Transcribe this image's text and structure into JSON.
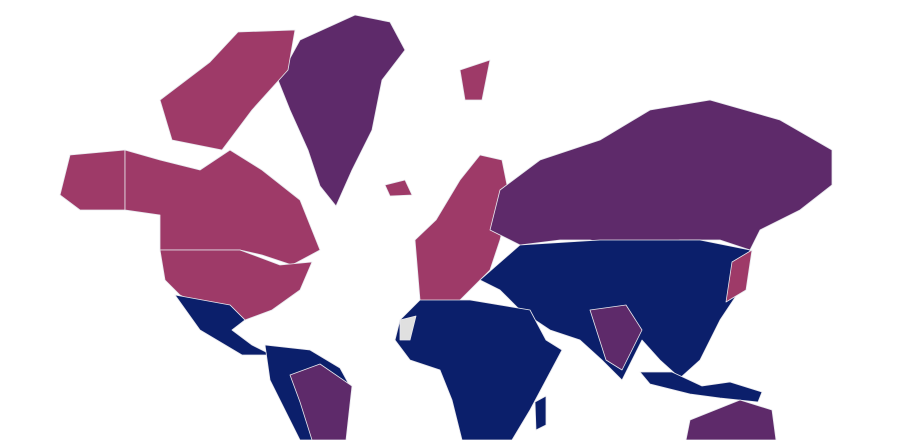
{
  "map": {
    "type": "choropleth",
    "projection": "mercator",
    "colors": {
      "low": "#0b1f6b",
      "mid": "#5e2a6a",
      "high": "#9e3a68",
      "no_data": "#e0e0e0",
      "border": "#e8e8ee"
    },
    "regions": [
      {
        "id": "greenland",
        "level": "mid"
      },
      {
        "id": "arctic-islands",
        "level": "high"
      },
      {
        "id": "alaska",
        "level": "high"
      },
      {
        "id": "canada",
        "level": "high"
      },
      {
        "id": "usa",
        "level": "high"
      },
      {
        "id": "mexico-central-america",
        "level": "low"
      },
      {
        "id": "south-america",
        "level": "low"
      },
      {
        "id": "brazil",
        "level": "mid"
      },
      {
        "id": "europe",
        "level": "high"
      },
      {
        "id": "iceland",
        "level": "high"
      },
      {
        "id": "svalbard",
        "level": "high"
      },
      {
        "id": "russia",
        "level": "mid"
      },
      {
        "id": "asia",
        "level": "low"
      },
      {
        "id": "india",
        "level": "mid"
      },
      {
        "id": "japan",
        "level": "high"
      },
      {
        "id": "africa",
        "level": "low"
      },
      {
        "id": "western-sahara",
        "level": "no_data"
      },
      {
        "id": "madagascar",
        "level": "low"
      },
      {
        "id": "southeast-asia",
        "level": "low"
      },
      {
        "id": "australia",
        "level": "mid"
      }
    ]
  }
}
